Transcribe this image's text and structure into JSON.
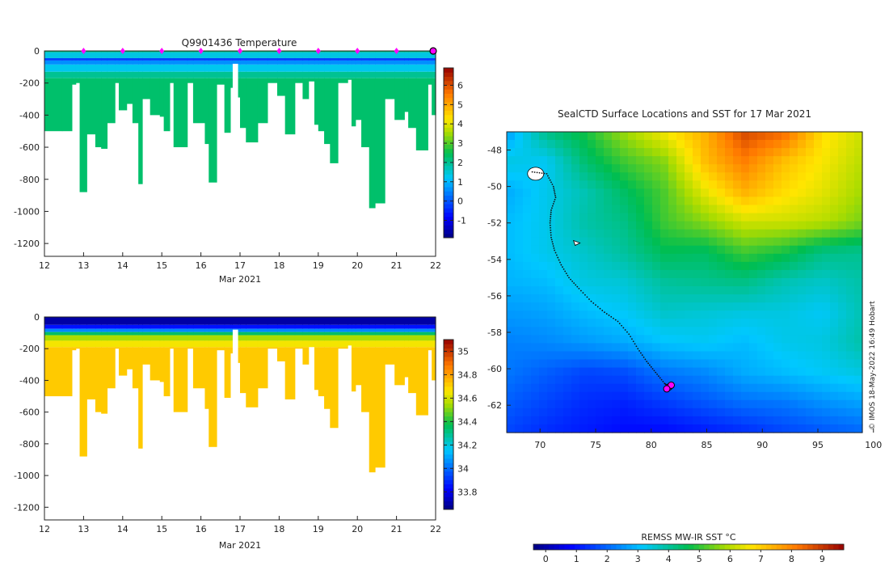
{
  "chart_data": [
    {
      "id": "temperature-section",
      "type": "heatmap",
      "title": "Q9901436  Temperature",
      "xlabel": "Mar 2021",
      "x_ticks": [
        "12",
        "13",
        "14",
        "15",
        "16",
        "17",
        "18",
        "19",
        "20",
        "21",
        "22"
      ],
      "xlim": [
        12,
        22
      ],
      "y_ticks": [
        0,
        -200,
        -400,
        -600,
        -800,
        -1000,
        -1200
      ],
      "ylim": [
        -1280,
        0
      ],
      "colorbar": {
        "ticks": [
          -1,
          0,
          1,
          2,
          3,
          4,
          5,
          6
        ],
        "range": [
          -1.9,
          6.9
        ]
      },
      "layers": [
        {
          "to_depth": 8,
          "value": 2.2
        },
        {
          "to_depth": 45,
          "value": 1.4
        },
        {
          "to_depth": 60,
          "value": -0.2
        },
        {
          "to_depth": 85,
          "value": 0.6
        },
        {
          "to_depth": 130,
          "value": 1.3
        },
        {
          "to_depth": 170,
          "value": 2.0
        },
        {
          "to_depth": 9999,
          "value": 2.3
        }
      ],
      "deep_value": 2.1,
      "profile_time_markers": [
        13,
        14,
        15,
        16,
        17,
        18,
        19,
        20,
        21
      ]
    },
    {
      "id": "salinity-section",
      "type": "heatmap",
      "title": "",
      "xlabel": "Mar 2021",
      "x_ticks": [
        "12",
        "13",
        "14",
        "15",
        "16",
        "17",
        "18",
        "19",
        "20",
        "21",
        "22"
      ],
      "xlim": [
        12,
        22
      ],
      "y_ticks": [
        0,
        -200,
        -400,
        -600,
        -800,
        -1000,
        -1200
      ],
      "ylim": [
        -1280,
        0
      ],
      "colorbar": {
        "ticks": [
          "33.8",
          "34",
          "34.2",
          "34.4",
          "34.6",
          "34.8",
          "35"
        ],
        "range": [
          33.65,
          35.1
        ]
      },
      "layers": [
        {
          "to_depth": 50,
          "value": 33.7
        },
        {
          "to_depth": 75,
          "value": 33.85
        },
        {
          "to_depth": 95,
          "value": 34.05
        },
        {
          "to_depth": 115,
          "value": 34.35
        },
        {
          "to_depth": 150,
          "value": 34.55
        },
        {
          "to_depth": 190,
          "value": 34.65
        },
        {
          "to_depth": 9999,
          "value": 34.72
        }
      ],
      "deep_value": 34.72
    },
    {
      "id": "sst-map",
      "type": "heatmap",
      "title": "SealCTD Surface Locations and SST for 17 Mar 2021",
      "x_ticks": [
        70,
        75,
        80,
        85,
        90,
        95,
        100
      ],
      "y_ticks": [
        -48,
        -50,
        -52,
        -54,
        -56,
        -58,
        -60,
        -62
      ],
      "xlim": [
        67,
        99
      ],
      "ylim": [
        -63.5,
        -47
      ],
      "colorbar_label": "REMSS MW-IR SST °C",
      "colorbar": {
        "ticks": [
          0,
          1,
          2,
          3,
          4,
          5,
          6,
          7,
          8,
          9
        ],
        "range": [
          -0.4,
          9.7
        ]
      },
      "track": [
        [
          69.3,
          -49.2
        ],
        [
          70.6,
          -49.3
        ],
        [
          71.2,
          -50.0
        ],
        [
          71.4,
          -50.6
        ],
        [
          71.0,
          -51.3
        ],
        [
          70.9,
          -52.0
        ],
        [
          71.0,
          -52.8
        ],
        [
          71.3,
          -53.5
        ],
        [
          71.9,
          -54.3
        ],
        [
          72.6,
          -55.0
        ],
        [
          73.5,
          -55.6
        ],
        [
          74.6,
          -56.3
        ],
        [
          75.8,
          -56.9
        ],
        [
          77.0,
          -57.4
        ],
        [
          78.0,
          -58.1
        ],
        [
          78.8,
          -58.9
        ],
        [
          79.6,
          -59.6
        ],
        [
          80.4,
          -60.2
        ],
        [
          81.2,
          -60.8
        ],
        [
          81.6,
          -61.0
        ]
      ],
      "surface_locations": [
        [
          81.6,
          -61.0
        ],
        [
          81.8,
          -60.9
        ],
        [
          81.4,
          -61.1
        ]
      ],
      "sst_field": [
        [
          2.6,
          4.2,
          4.8,
          5.8,
          6.6,
          7.4,
          8.8,
          8.4,
          6.8,
          6.2
        ],
        [
          3.4,
          3.2,
          4.4,
          5.1,
          5.6,
          7.2,
          8.1,
          7.2,
          6.6,
          6.0
        ],
        [
          2.8,
          3.3,
          3.8,
          4.5,
          5.2,
          6.4,
          7.4,
          6.8,
          6.4,
          5.8
        ],
        [
          3.0,
          3.3,
          3.9,
          4.2,
          5.1,
          5.6,
          6.2,
          6.2,
          6.0,
          5.5
        ],
        [
          3.0,
          3.3,
          3.6,
          4.0,
          4.6,
          4.5,
          5.1,
          4.8,
          4.2,
          4.1
        ],
        [
          2.9,
          3.0,
          3.4,
          3.5,
          4.0,
          4.1,
          4.2,
          3.8,
          3.6,
          3.9
        ],
        [
          2.6,
          2.7,
          3.0,
          3.2,
          3.6,
          3.5,
          3.4,
          3.4,
          3.2,
          3.8
        ],
        [
          2.3,
          2.4,
          2.6,
          2.8,
          3.1,
          3.2,
          3.0,
          3.3,
          3.4,
          3.9
        ],
        [
          2.2,
          1.9,
          1.6,
          1.7,
          2.2,
          2.4,
          2.8,
          3.0,
          3.2,
          3.4
        ],
        [
          1.9,
          1.6,
          1.3,
          1.2,
          1.5,
          1.8,
          2.1,
          2.2,
          2.5,
          2.7
        ],
        [
          1.6,
          1.3,
          1.1,
          0.9,
          0.9,
          1.1,
          1.3,
          1.6,
          1.8,
          2.0
        ]
      ],
      "credit": "© IMOS 18-May-2022 16:49 Hobart"
    }
  ],
  "section_profiles": [
    {
      "t": 12.0,
      "depth": 500
    },
    {
      "t": 12.45,
      "depth": 500
    },
    {
      "t": 12.7,
      "depth": 210
    },
    {
      "t": 12.8,
      "depth": 200
    },
    {
      "t": 12.9,
      "depth": 880
    },
    {
      "t": 13.08,
      "depth": 520
    },
    {
      "t": 13.3,
      "depth": 600
    },
    {
      "t": 13.45,
      "depth": 610
    },
    {
      "t": 13.6,
      "depth": 450
    },
    {
      "t": 13.8,
      "depth": 200
    },
    {
      "t": 13.9,
      "depth": 370
    },
    {
      "t": 14.1,
      "depth": 330
    },
    {
      "t": 14.25,
      "depth": 450
    },
    {
      "t": 14.4,
      "depth": 830
    },
    {
      "t": 14.5,
      "depth": 300
    },
    {
      "t": 14.7,
      "depth": 400
    },
    {
      "t": 14.95,
      "depth": 410
    },
    {
      "t": 15.05,
      "depth": 500
    },
    {
      "t": 15.2,
      "depth": 200
    },
    {
      "t": 15.3,
      "depth": 600
    },
    {
      "t": 15.65,
      "depth": 200
    },
    {
      "t": 15.8,
      "depth": 450
    },
    {
      "t": 16.1,
      "depth": 580
    },
    {
      "t": 16.2,
      "depth": 820
    },
    {
      "t": 16.4,
      "depth": 210
    },
    {
      "t": 16.6,
      "depth": 510
    },
    {
      "t": 16.75,
      "depth": 230
    },
    {
      "t": 16.8,
      "depth": 80
    },
    {
      "t": 16.95,
      "depth": 290
    },
    {
      "t": 17.0,
      "depth": 480
    },
    {
      "t": 17.15,
      "depth": 570
    },
    {
      "t": 17.45,
      "depth": 450
    },
    {
      "t": 17.7,
      "depth": 200
    },
    {
      "t": 17.95,
      "depth": 280
    },
    {
      "t": 18.15,
      "depth": 520
    },
    {
      "t": 18.4,
      "depth": 200
    },
    {
      "t": 18.6,
      "depth": 300
    },
    {
      "t": 18.75,
      "depth": 190
    },
    {
      "t": 18.9,
      "depth": 460
    },
    {
      "t": 19.0,
      "depth": 500
    },
    {
      "t": 19.15,
      "depth": 580
    },
    {
      "t": 19.3,
      "depth": 700
    },
    {
      "t": 19.5,
      "depth": 200
    },
    {
      "t": 19.75,
      "depth": 180
    },
    {
      "t": 19.85,
      "depth": 470
    },
    {
      "t": 19.95,
      "depth": 430
    },
    {
      "t": 20.1,
      "depth": 600
    },
    {
      "t": 20.3,
      "depth": 980
    },
    {
      "t": 20.45,
      "depth": 950
    },
    {
      "t": 20.7,
      "depth": 300
    },
    {
      "t": 20.95,
      "depth": 430
    },
    {
      "t": 21.2,
      "depth": 380
    },
    {
      "t": 21.3,
      "depth": 480
    },
    {
      "t": 21.5,
      "depth": 620
    },
    {
      "t": 21.8,
      "depth": 210
    },
    {
      "t": 21.9,
      "depth": 400
    }
  ]
}
